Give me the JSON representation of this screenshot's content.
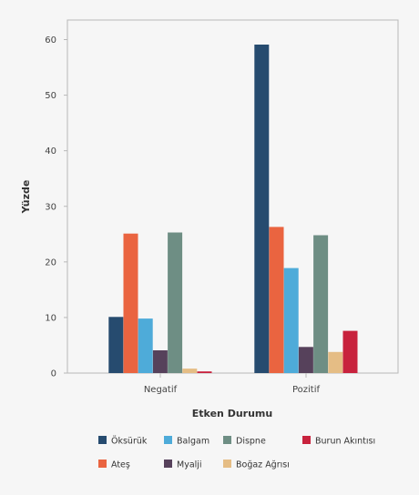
{
  "chart_data": {
    "type": "bar",
    "xlabel": "Etken Durumu",
    "ylabel": "Yüzde",
    "ylim": [
      0,
      65
    ],
    "yticks": [
      0,
      10,
      20,
      30,
      40,
      50,
      60
    ],
    "grid": false,
    "legend_position": "bottom",
    "categories": [
      "Negatif",
      "Pozitif"
    ],
    "series": [
      {
        "name": "Öksürük",
        "color": "#264b6f",
        "values": [
          10.1,
          59.1
        ]
      },
      {
        "name": "Ateş",
        "color": "#ea6440",
        "values": [
          25.1,
          26.3
        ]
      },
      {
        "name": "Balgam",
        "color": "#4eabd9",
        "values": [
          9.8,
          18.9
        ]
      },
      {
        "name": "Myalji",
        "color": "#56415b",
        "values": [
          4.1,
          4.7
        ]
      },
      {
        "name": "Dispne",
        "color": "#6e8e84",
        "values": [
          25.3,
          24.8
        ]
      },
      {
        "name": "Boğaz Ağrısı",
        "color": "#e5bd85",
        "values": [
          0.8,
          3.8
        ]
      },
      {
        "name": "Burun Akıntısı",
        "color": "#c8223d",
        "values": [
          0.3,
          7.6
        ]
      }
    ]
  }
}
